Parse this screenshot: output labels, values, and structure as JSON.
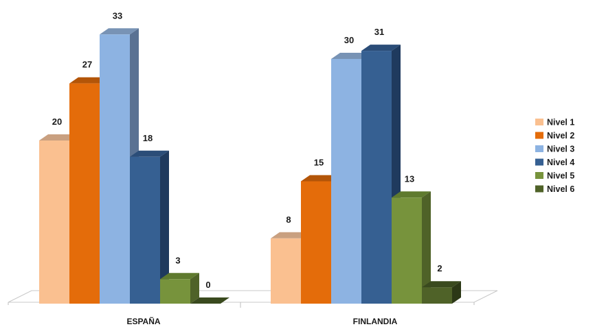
{
  "chart_data": {
    "type": "bar",
    "categories": [
      "ESPAÑA",
      "FINLANDIA"
    ],
    "series": [
      {
        "name": "Nivel 1",
        "values": [
          20,
          8
        ]
      },
      {
        "name": "Nivel 2",
        "values": [
          27,
          15
        ]
      },
      {
        "name": "Nivel 3",
        "values": [
          33,
          30
        ]
      },
      {
        "name": "Nivel 4",
        "values": [
          18,
          31
        ]
      },
      {
        "name": "Nivel 5",
        "values": [
          3,
          13
        ]
      },
      {
        "name": "Nivel 6",
        "values": [
          0,
          2
        ]
      }
    ],
    "title": "",
    "xlabel": "",
    "ylabel": "",
    "ylim": [
      0,
      35
    ],
    "grid": false,
    "legend_position": "right",
    "style": "3d-column",
    "colors": [
      "#FAC090",
      "#E46C0A",
      "#8DB3E2",
      "#366092",
      "#77933C",
      "#4F6228"
    ],
    "side_colors": [
      "#C89468",
      "#A24F08",
      "#5A7293",
      "#1F3A5E",
      "#4F6228",
      "#2C3816"
    ],
    "top_colors": [
      "#C9A080",
      "#B35508",
      "#7893B5",
      "#2B4D78",
      "#5F7A2E",
      "#3A4A1E"
    ]
  }
}
